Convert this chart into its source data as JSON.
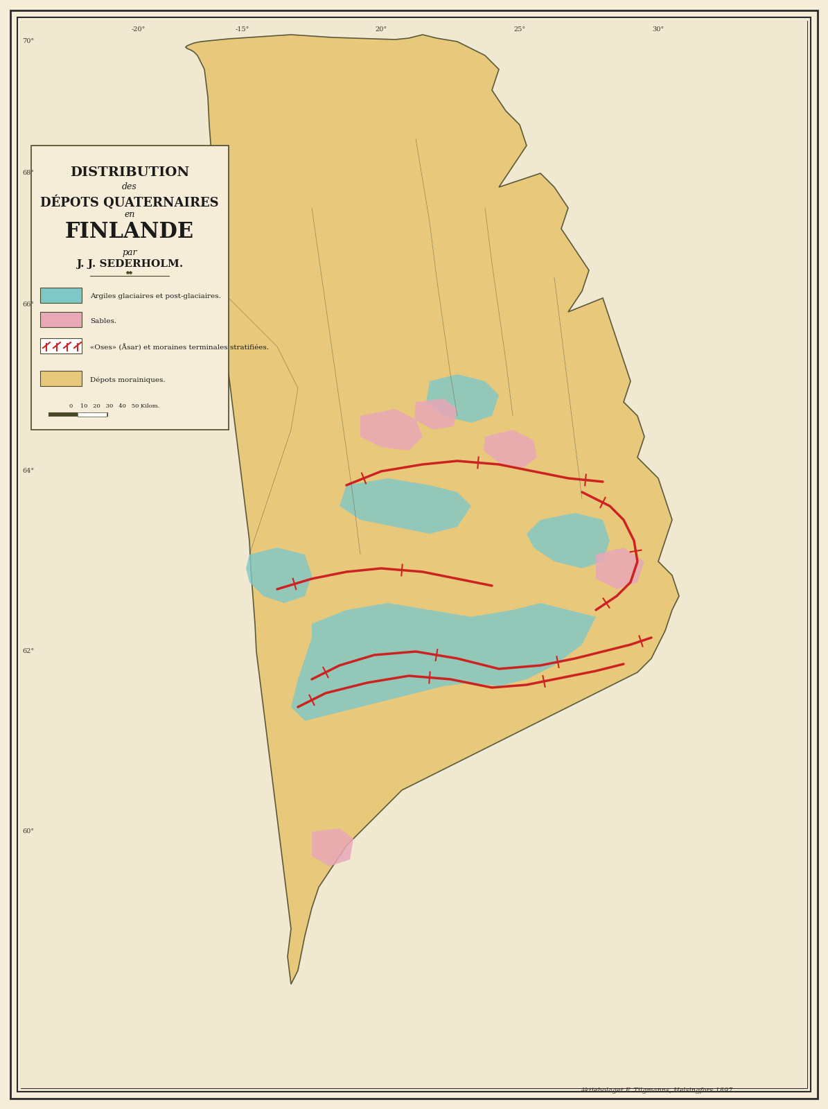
{
  "title_line1": "DISTRIBUTION",
  "title_line2": "des",
  "title_line3": "DÉPOTS QUATERNAIRES",
  "title_line4": "en",
  "title_line5": "FINLANDE",
  "title_line6": "par",
  "title_line7": "J. J. SEDERHOLM.",
  "legend_items": [
    {
      "color": "#7EC8C8",
      "label": "Argiles glaciaires et post-glaciaires."
    },
    {
      "color": "#E8A8B8",
      "label": "Sables."
    },
    {
      "color": "#FFFFFF",
      "label": "«Oses» (Åsar) et moraines terminales stratifiées.",
      "has_pattern": true
    },
    {
      "color": "#E8C87A",
      "label": "Dépots morainiques."
    }
  ],
  "background_color": "#F5EDD8",
  "map_bg": "#F0E8D0",
  "border_color": "#2A2A2A",
  "text_color": "#1A1A1A",
  "legend_box_color": "#F5EDD8",
  "finland_moraine_color": "#E8C87A",
  "finland_clay_color": "#7EC8C8",
  "finland_sand_color": "#E8A8B8",
  "finland_ose_color": "#CC2222",
  "norway_bg": "#F0E8D0",
  "water_color": "#C8E0E8",
  "figsize": [
    11.95,
    16.0
  ],
  "dpi": 100
}
